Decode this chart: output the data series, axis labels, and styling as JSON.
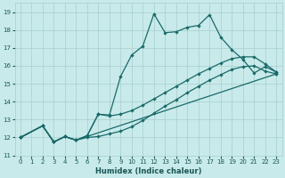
{
  "xlabel": "Humidex (Indice chaleur)",
  "bg_color": "#c8eaea",
  "grid_color": "#a8cece",
  "line_color": "#1a6a6a",
  "xlim": [
    -0.5,
    23.5
  ],
  "ylim": [
    11,
    19.5
  ],
  "xticks": [
    0,
    1,
    2,
    3,
    4,
    5,
    6,
    7,
    8,
    9,
    10,
    11,
    12,
    13,
    14,
    15,
    16,
    17,
    18,
    19,
    20,
    21,
    22,
    23
  ],
  "yticks": [
    11,
    12,
    13,
    14,
    15,
    16,
    17,
    18,
    19
  ],
  "line1_x": [
    0,
    2,
    3,
    4,
    5,
    6,
    7,
    8,
    9,
    10,
    11,
    12,
    13,
    14,
    15,
    16,
    17,
    18,
    19,
    20,
    21,
    22,
    23
  ],
  "line1_y": [
    12.0,
    12.65,
    11.75,
    12.05,
    11.85,
    12.1,
    13.3,
    13.25,
    15.4,
    16.6,
    17.1,
    18.9,
    17.85,
    17.9,
    18.15,
    18.25,
    18.85,
    17.6,
    16.9,
    16.35,
    15.6,
    15.95,
    15.65
  ],
  "line2_x": [
    0,
    2,
    3,
    4,
    5,
    6,
    7,
    8,
    9,
    10,
    11,
    12,
    13,
    14,
    15,
    16,
    17,
    18,
    19,
    20,
    21,
    22,
    23
  ],
  "line2_y": [
    12.0,
    12.65,
    11.75,
    12.05,
    11.85,
    12.1,
    13.3,
    13.2,
    13.3,
    13.5,
    13.8,
    14.15,
    14.5,
    14.85,
    15.2,
    15.55,
    15.85,
    16.15,
    16.4,
    16.5,
    16.5,
    16.1,
    15.65
  ],
  "line3_x": [
    0,
    2,
    3,
    4,
    5,
    6,
    7,
    8,
    9,
    10,
    11,
    12,
    13,
    14,
    15,
    16,
    17,
    18,
    19,
    20,
    21,
    22,
    23
  ],
  "line3_y": [
    12.0,
    12.65,
    11.75,
    12.05,
    11.85,
    12.0,
    12.05,
    12.2,
    12.35,
    12.6,
    12.95,
    13.35,
    13.75,
    14.1,
    14.5,
    14.85,
    15.2,
    15.5,
    15.8,
    15.95,
    16.0,
    15.7,
    15.55
  ],
  "line4_x": [
    0,
    2,
    3,
    4,
    5,
    23
  ],
  "line4_y": [
    12.0,
    12.65,
    11.75,
    12.05,
    11.85,
    15.55
  ]
}
